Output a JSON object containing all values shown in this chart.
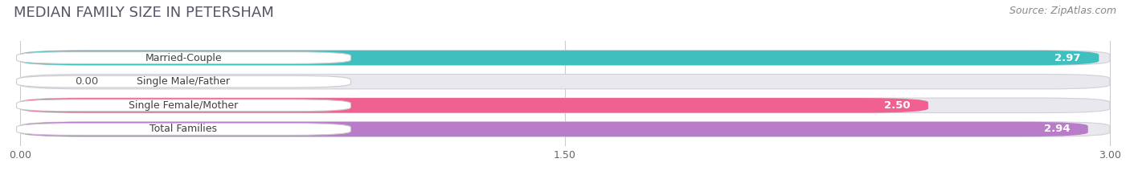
{
  "title": "MEDIAN FAMILY SIZE IN PETERSHAM",
  "source": "Source: ZipAtlas.com",
  "categories": [
    "Married-Couple",
    "Single Male/Father",
    "Single Female/Mother",
    "Total Families"
  ],
  "values": [
    2.97,
    0.0,
    2.5,
    2.94
  ],
  "bar_colors": [
    "#40bfbf",
    "#aab8e8",
    "#f06090",
    "#b87cc8"
  ],
  "xlim_min": 0.0,
  "xlim_max": 3.0,
  "xticks": [
    0.0,
    1.5,
    3.0
  ],
  "xtick_labels": [
    "0.00",
    "1.50",
    "3.00"
  ],
  "background_color": "#ffffff",
  "bar_bg_color": "#e8e8ee",
  "label_bg_color": "#ffffff",
  "bar_height": 0.62,
  "value_fontsize": 9.5,
  "label_fontsize": 9,
  "title_fontsize": 13,
  "source_fontsize": 9
}
